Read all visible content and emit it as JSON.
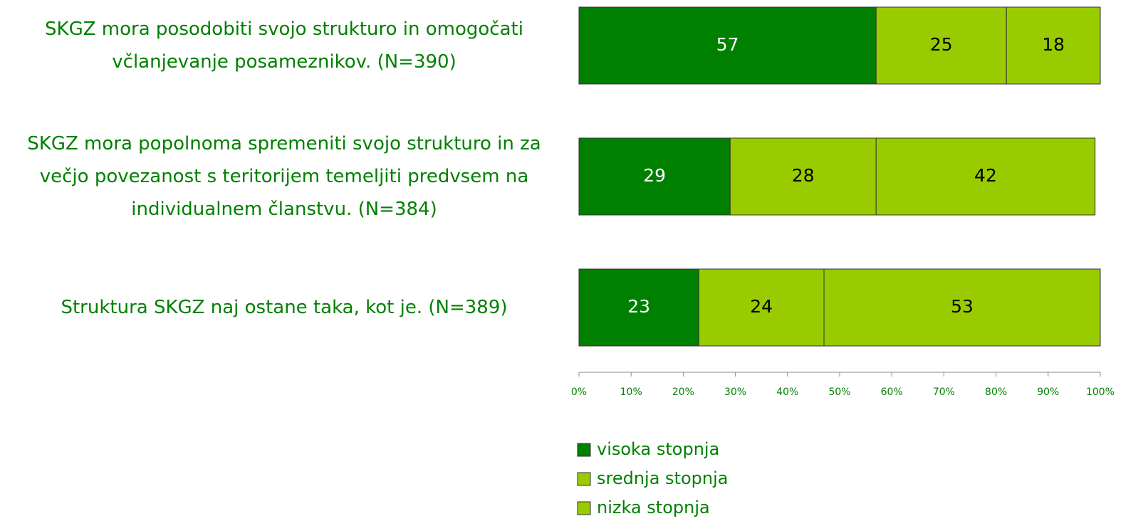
{
  "chart_data": {
    "type": "stacked-barh",
    "categories": [
      "SKGZ mora posodobiti svojo strukturo in omogočati včlanjevanje posameznikov. (N=390)",
      "SKGZ mora popolnoma spremeniti svojo strukturo in za večjo povezanost s teritorijem temeljiti predvsem na individualnem članstvu. (N=384)",
      "Struktura SKGZ naj ostane taka, kot je. (N=389)"
    ],
    "series": [
      {
        "name": "visoka stopnja",
        "color": "#008000",
        "values": [
          57,
          29,
          23
        ]
      },
      {
        "name": "srednja stopnja",
        "color": "#99cc00",
        "values": [
          25,
          28,
          24
        ]
      },
      {
        "name": "nizka stopnja",
        "color": "#99cc00",
        "values": [
          18,
          42,
          53
        ]
      }
    ],
    "xlim": [
      0,
      100
    ],
    "xticks": [
      {
        "value": 0,
        "label": "0%"
      },
      {
        "value": 10,
        "label": "10%"
      },
      {
        "value": 20,
        "label": "20%"
      },
      {
        "value": 30,
        "label": "30%"
      },
      {
        "value": 40,
        "label": "40%"
      },
      {
        "value": 50,
        "label": "50%"
      },
      {
        "value": 60,
        "label": "60%"
      },
      {
        "value": 70,
        "label": "70%"
      },
      {
        "value": 80,
        "label": "80%"
      },
      {
        "value": 90,
        "label": "90%"
      },
      {
        "value": 100,
        "label": "100%"
      }
    ]
  }
}
